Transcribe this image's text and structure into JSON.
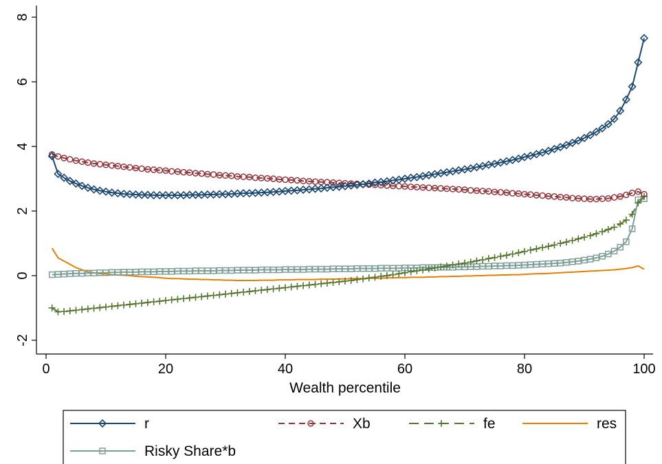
{
  "chart_data": {
    "type": "line",
    "title": "",
    "xlabel": "Wealth percentile",
    "ylabel": "",
    "xlim": [
      0,
      100
    ],
    "ylim": [
      -2,
      8
    ],
    "xticks": [
      "0",
      "20",
      "40",
      "60",
      "80",
      "100"
    ],
    "yticks": [
      "-2",
      "0",
      "2",
      "4",
      "6",
      "8"
    ],
    "grid": false,
    "legend_position": "bottom",
    "x": [
      1,
      2,
      3,
      4,
      5,
      6,
      7,
      8,
      9,
      10,
      11,
      12,
      13,
      14,
      15,
      16,
      17,
      18,
      19,
      20,
      21,
      22,
      23,
      24,
      25,
      26,
      27,
      28,
      29,
      30,
      31,
      32,
      33,
      34,
      35,
      36,
      37,
      38,
      39,
      40,
      41,
      42,
      43,
      44,
      45,
      46,
      47,
      48,
      49,
      50,
      51,
      52,
      53,
      54,
      55,
      56,
      57,
      58,
      59,
      60,
      61,
      62,
      63,
      64,
      65,
      66,
      67,
      68,
      69,
      70,
      71,
      72,
      73,
      74,
      75,
      76,
      77,
      78,
      79,
      80,
      81,
      82,
      83,
      84,
      85,
      86,
      87,
      88,
      89,
      90,
      91,
      92,
      93,
      94,
      95,
      96,
      97,
      98,
      99,
      100
    ],
    "series": [
      {
        "name": "r",
        "color": "#1a476f",
        "marker": "diamond",
        "dash": "solid",
        "values": [
          3.7,
          3.15,
          3.03,
          2.93,
          2.85,
          2.78,
          2.72,
          2.67,
          2.63,
          2.6,
          2.57,
          2.55,
          2.53,
          2.52,
          2.51,
          2.5,
          2.5,
          2.49,
          2.49,
          2.49,
          2.49,
          2.49,
          2.49,
          2.5,
          2.5,
          2.5,
          2.51,
          2.51,
          2.52,
          2.52,
          2.53,
          2.54,
          2.55,
          2.55,
          2.56,
          2.57,
          2.58,
          2.59,
          2.6,
          2.62,
          2.63,
          2.64,
          2.66,
          2.67,
          2.69,
          2.7,
          2.72,
          2.74,
          2.75,
          2.77,
          2.79,
          2.81,
          2.83,
          2.85,
          2.88,
          2.9,
          2.92,
          2.95,
          2.97,
          3.0,
          3.03,
          3.05,
          3.08,
          3.11,
          3.14,
          3.17,
          3.2,
          3.23,
          3.26,
          3.29,
          3.32,
          3.36,
          3.39,
          3.43,
          3.46,
          3.5,
          3.54,
          3.58,
          3.62,
          3.67,
          3.71,
          3.76,
          3.81,
          3.86,
          3.92,
          3.98,
          4.04,
          4.11,
          4.18,
          4.26,
          4.35,
          4.45,
          4.56,
          4.69,
          4.85,
          5.1,
          5.45,
          5.85,
          6.6,
          7.35
        ]
      },
      {
        "name": "Xb",
        "color": "#90353b",
        "marker": "circle",
        "dash": "dash",
        "values": [
          3.75,
          3.69,
          3.64,
          3.6,
          3.56,
          3.53,
          3.5,
          3.47,
          3.45,
          3.43,
          3.41,
          3.39,
          3.37,
          3.35,
          3.33,
          3.31,
          3.29,
          3.28,
          3.26,
          3.25,
          3.23,
          3.22,
          3.2,
          3.19,
          3.17,
          3.16,
          3.14,
          3.13,
          3.11,
          3.1,
          3.09,
          3.07,
          3.06,
          3.05,
          3.03,
          3.02,
          3.01,
          3.0,
          2.98,
          2.97,
          2.96,
          2.95,
          2.93,
          2.92,
          2.91,
          2.9,
          2.89,
          2.88,
          2.87,
          2.86,
          2.85,
          2.84,
          2.83,
          2.82,
          2.81,
          2.8,
          2.79,
          2.78,
          2.77,
          2.76,
          2.75,
          2.74,
          2.73,
          2.72,
          2.71,
          2.7,
          2.69,
          2.68,
          2.67,
          2.66,
          2.64,
          2.63,
          2.62,
          2.61,
          2.59,
          2.58,
          2.57,
          2.55,
          2.54,
          2.52,
          2.51,
          2.49,
          2.48,
          2.46,
          2.45,
          2.43,
          2.42,
          2.4,
          2.39,
          2.38,
          2.37,
          2.37,
          2.38,
          2.39,
          2.42,
          2.45,
          2.5,
          2.56,
          2.6,
          2.52
        ]
      },
      {
        "name": "fe",
        "color": "#55752f",
        "marker": "plus",
        "dash": "longdash",
        "values": [
          -1.0,
          -1.12,
          -1.11,
          -1.09,
          -1.07,
          -1.05,
          -1.03,
          -1.01,
          -0.99,
          -0.97,
          -0.95,
          -0.93,
          -0.91,
          -0.89,
          -0.87,
          -0.85,
          -0.83,
          -0.81,
          -0.79,
          -0.77,
          -0.75,
          -0.73,
          -0.71,
          -0.69,
          -0.67,
          -0.65,
          -0.63,
          -0.61,
          -0.59,
          -0.57,
          -0.55,
          -0.53,
          -0.51,
          -0.49,
          -0.47,
          -0.45,
          -0.43,
          -0.41,
          -0.39,
          -0.37,
          -0.35,
          -0.33,
          -0.31,
          -0.29,
          -0.27,
          -0.25,
          -0.23,
          -0.21,
          -0.19,
          -0.17,
          -0.15,
          -0.12,
          -0.1,
          -0.07,
          -0.05,
          -0.02,
          0.0,
          0.03,
          0.06,
          0.09,
          0.12,
          0.15,
          0.18,
          0.21,
          0.24,
          0.27,
          0.3,
          0.33,
          0.36,
          0.39,
          0.42,
          0.46,
          0.49,
          0.53,
          0.56,
          0.6,
          0.63,
          0.67,
          0.71,
          0.75,
          0.79,
          0.83,
          0.87,
          0.91,
          0.95,
          1.0,
          1.04,
          1.09,
          1.14,
          1.19,
          1.24,
          1.3,
          1.36,
          1.43,
          1.5,
          1.6,
          1.72,
          1.9,
          2.25,
          2.45
        ]
      },
      {
        "name": "res",
        "color": "#e37e00",
        "marker": "none",
        "dash": "solid",
        "values": [
          0.85,
          0.55,
          0.45,
          0.35,
          0.25,
          0.18,
          0.12,
          0.09,
          0.06,
          0.05,
          0.03,
          0.02,
          0.01,
          0.0,
          -0.02,
          -0.03,
          -0.04,
          -0.05,
          -0.06,
          -0.08,
          -0.09,
          -0.09,
          -0.1,
          -0.11,
          -0.11,
          -0.12,
          -0.12,
          -0.13,
          -0.13,
          -0.14,
          -0.14,
          -0.15,
          -0.15,
          -0.15,
          -0.15,
          -0.14,
          -0.14,
          -0.14,
          -0.13,
          -0.13,
          -0.13,
          -0.12,
          -0.12,
          -0.12,
          -0.12,
          -0.11,
          -0.11,
          -0.11,
          -0.1,
          -0.1,
          -0.09,
          -0.09,
          -0.09,
          -0.08,
          -0.08,
          -0.08,
          -0.07,
          -0.07,
          -0.06,
          -0.06,
          -0.05,
          -0.05,
          -0.05,
          -0.04,
          -0.04,
          -0.03,
          -0.03,
          -0.02,
          -0.02,
          -0.01,
          -0.01,
          0.0,
          0.0,
          0.01,
          0.01,
          0.02,
          0.02,
          0.03,
          0.03,
          0.04,
          0.05,
          0.06,
          0.06,
          0.07,
          0.08,
          0.09,
          0.1,
          0.11,
          0.12,
          0.13,
          0.14,
          0.15,
          0.16,
          0.17,
          0.18,
          0.2,
          0.22,
          0.25,
          0.3,
          0.2
        ]
      },
      {
        "name": "Risky Share*b",
        "color": "#7c9e96",
        "marker": "square",
        "dash": "solid",
        "values": [
          0.03,
          0.04,
          0.05,
          0.06,
          0.07,
          0.07,
          0.08,
          0.08,
          0.09,
          0.09,
          0.1,
          0.1,
          0.11,
          0.11,
          0.11,
          0.12,
          0.12,
          0.12,
          0.13,
          0.13,
          0.13,
          0.14,
          0.14,
          0.14,
          0.15,
          0.15,
          0.15,
          0.15,
          0.16,
          0.16,
          0.16,
          0.17,
          0.17,
          0.17,
          0.17,
          0.18,
          0.18,
          0.18,
          0.18,
          0.19,
          0.19,
          0.19,
          0.19,
          0.2,
          0.2,
          0.2,
          0.2,
          0.21,
          0.21,
          0.21,
          0.21,
          0.22,
          0.22,
          0.22,
          0.22,
          0.23,
          0.23,
          0.23,
          0.23,
          0.24,
          0.24,
          0.24,
          0.25,
          0.25,
          0.25,
          0.26,
          0.26,
          0.26,
          0.27,
          0.27,
          0.28,
          0.28,
          0.29,
          0.29,
          0.3,
          0.3,
          0.31,
          0.31,
          0.32,
          0.33,
          0.34,
          0.35,
          0.36,
          0.37,
          0.38,
          0.39,
          0.41,
          0.43,
          0.45,
          0.48,
          0.51,
          0.55,
          0.6,
          0.67,
          0.76,
          0.88,
          1.05,
          1.45,
          2.35,
          2.38
        ]
      }
    ],
    "legend_rows": [
      [
        "r",
        "Xb",
        "fe",
        "res"
      ],
      [
        "Risky Share*b"
      ]
    ]
  }
}
